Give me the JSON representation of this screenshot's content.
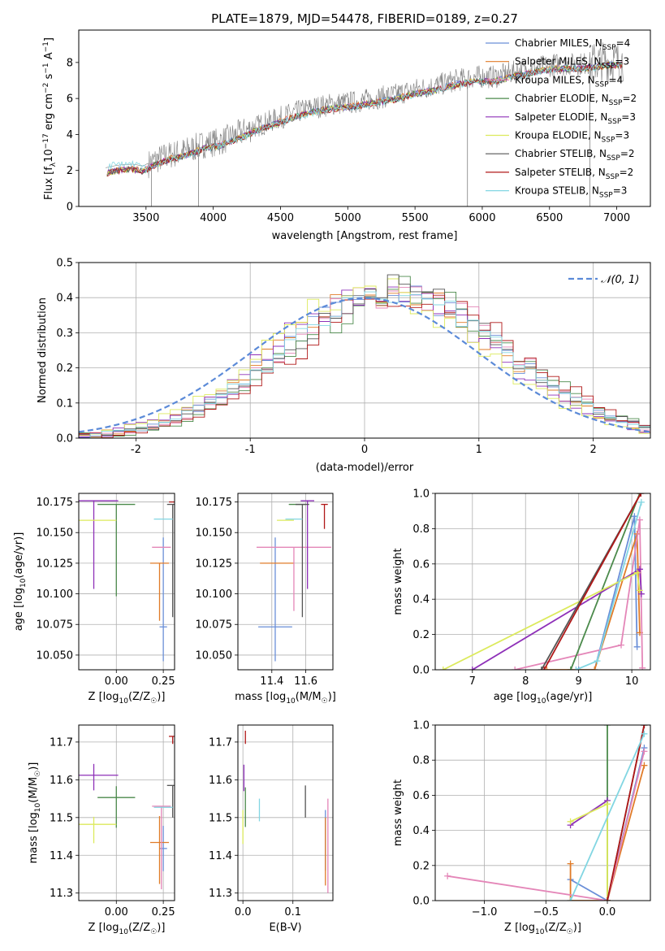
{
  "figure_title": "PLATE=1879, MJD=54478, FIBERID=0189, z=0.27",
  "colors": {
    "Chabrier MILES": "#6a8fd8",
    "Salpeter MILES": "#e07b28",
    "Kroupa MILES": "#e486b8",
    "Chabrier ELODIE": "#4b8a4b",
    "Salpeter ELODIE": "#8e30b8",
    "Kroupa ELODIE": "#dcea5c",
    "Chabrier STELIB": "#555555",
    "Salpeter STELIB": "#b01818",
    "Kroupa STELIB": "#82d6e2",
    "data": "#808080",
    "normal": "#5b8ad8"
  },
  "chart_data": [
    {
      "type": "line",
      "name": "spectrum",
      "xlabel": "wavelength [Angstrom, rest frame]",
      "ylabel": "Flux [f",
      "ylabel_sub": "λ",
      "ylabel_tail": "10",
      "ylabel_sup1": "−17",
      "ylabel_mid": " erg cm",
      "ylabel_sup2": "−2",
      "ylabel_mid2": " s",
      "ylabel_sup3": "−1",
      "ylabel_mid3": " A",
      "ylabel_sup4": "−1",
      "ylabel_end": "]",
      "xlim": [
        3000,
        7250
      ],
      "ylim": [
        0,
        9.8
      ],
      "xticks": [
        3500,
        4000,
        4500,
        5000,
        5500,
        6000,
        6500,
        7000
      ],
      "yticks": [
        0,
        2,
        4,
        6,
        8
      ],
      "continuum_x": [
        3200,
        3260,
        3300,
        3400,
        3480,
        3550,
        3650,
        3800,
        3950,
        4050,
        4150,
        4300,
        4450,
        4600,
        4750,
        4900,
        5050,
        5200,
        5350,
        5500,
        5650,
        5800,
        5950,
        6100,
        6250,
        6400,
        6550,
        6700,
        6850,
        7000,
        7050
      ],
      "continuum_y": [
        1.9,
        2.0,
        2.05,
        2.1,
        2.0,
        2.3,
        2.6,
        2.9,
        3.3,
        3.4,
        3.7,
        4.2,
        4.6,
        5.0,
        5.3,
        5.5,
        5.6,
        5.8,
        6.0,
        6.3,
        6.5,
        6.8,
        7.0,
        7.0,
        7.3,
        7.5,
        7.7,
        7.7,
        7.8,
        7.9,
        7.9
      ],
      "legend": [
        {
          "label": "Chabrier MILES, N",
          "sub": "SSP",
          "tail": "=4"
        },
        {
          "label": "Salpeter MILES, N",
          "sub": "SSP",
          "tail": "=3"
        },
        {
          "label": "Kroupa MILES, N",
          "sub": "SSP",
          "tail": "=4"
        },
        {
          "label": "Chabrier ELODIE, N",
          "sub": "SSP",
          "tail": "=2"
        },
        {
          "label": "Salpeter ELODIE, N",
          "sub": "SSP",
          "tail": "=3"
        },
        {
          "label": "Kroupa ELODIE, N",
          "sub": "SSP",
          "tail": "=3"
        },
        {
          "label": "Chabrier STELIB, N",
          "sub": "SSP",
          "tail": "=2"
        },
        {
          "label": "Salpeter STELIB, N",
          "sub": "SSP",
          "tail": "=2"
        },
        {
          "label": "Kroupa STELIB, N",
          "sub": "SSP",
          "tail": "=3"
        }
      ],
      "legend_position": "top-right"
    },
    {
      "type": "histogram",
      "name": "residuals",
      "xlabel": "(data-model)/error",
      "ylabel": "Normed distribution",
      "xlim": [
        -2.5,
        2.5
      ],
      "ylim": [
        0,
        0.5
      ],
      "xticks": [
        -2,
        -1,
        0,
        1,
        2
      ],
      "yticks": [
        0.0,
        0.1,
        0.2,
        0.3,
        0.4,
        0.5
      ],
      "grid": true,
      "bin_edges_start": -2.5,
      "bin_width": 0.1,
      "series_shifts": [
        0.25,
        0.2,
        0.3,
        0.35,
        0.15,
        0.1,
        0.3,
        0.4,
        0.28
      ],
      "normal_label": "𝒩(0, 1)",
      "legend_position": "top-right"
    },
    {
      "type": "scatter",
      "name": "age-vs-Z",
      "xlabel": "Z [log",
      "xlabel_sub": "10",
      "xlabel_tail": "(Z/Z",
      "xlabel_sub2": "☉",
      "xlabel_end": ")]",
      "ylabel": "age  [log",
      "ylabel_sub": "10",
      "ylabel_tail": "(age/yr)]",
      "xlim": [
        -0.2,
        0.31
      ],
      "ylim": [
        10.038,
        10.182
      ],
      "xticks": [
        "0.00",
        "0.25"
      ],
      "xtick_values": [
        0.0,
        0.25
      ],
      "yticks": [
        "10.050",
        "10.075",
        "10.100",
        "10.125",
        "10.150",
        "10.175"
      ],
      "ytick_values": [
        10.05,
        10.075,
        10.1,
        10.125,
        10.15,
        10.175
      ],
      "points": [
        {
          "series": "Chabrier MILES",
          "x": 0.25,
          "y": 10.073,
          "xerr": 0.02,
          "yerr": [
            0.028,
            0.073
          ]
        },
        {
          "series": "Salpeter MILES",
          "x": 0.23,
          "y": 10.125,
          "xerr": 0.05,
          "yerr": [
            0.047,
            0.0
          ]
        },
        {
          "series": "Kroupa MILES",
          "x": 0.24,
          "y": 10.138,
          "xerr": 0.05,
          "yerr": [
            0.0,
            0.0
          ]
        },
        {
          "series": "Chabrier ELODIE",
          "x": 0.0,
          "y": 10.173,
          "xerr": 0.1,
          "yerr": [
            0.075,
            0.0
          ]
        },
        {
          "series": "Salpeter ELODIE",
          "x": -0.12,
          "y": 10.176,
          "xerr": 0.13,
          "yerr": [
            0.072,
            0.0
          ]
        },
        {
          "series": "Kroupa ELODIE",
          "x": -0.12,
          "y": 10.16,
          "xerr": 0.12,
          "yerr": [
            0.0,
            0.0
          ]
        },
        {
          "series": "Chabrier STELIB",
          "x": 0.3,
          "y": 10.173,
          "xerr": 0.03,
          "yerr": [
            0.092,
            0.0
          ]
        },
        {
          "series": "Salpeter STELIB",
          "x": 0.3,
          "y": 10.175,
          "xerr": 0.02,
          "yerr": [
            0.0,
            0.0
          ]
        },
        {
          "series": "Kroupa STELIB",
          "x": 0.25,
          "y": 10.161,
          "xerr": 0.05,
          "yerr": [
            0.0,
            0.0
          ]
        }
      ]
    },
    {
      "type": "scatter",
      "name": "age-vs-mass",
      "xlabel": "mass [log",
      "xlabel_sub": "10",
      "xlabel_tail": "(M/M",
      "xlabel_sub2": "☉",
      "xlabel_end": ")]",
      "xlim": [
        11.2,
        11.76
      ],
      "ylim": [
        10.038,
        10.182
      ],
      "xticks": [
        "11.4",
        "11.6"
      ],
      "xtick_values": [
        11.4,
        11.6
      ],
      "yticks": [
        "10.050",
        "10.075",
        "10.100",
        "10.125",
        "10.150",
        "10.175"
      ],
      "ytick_values": [
        10.05,
        10.075,
        10.1,
        10.125,
        10.15,
        10.175
      ],
      "points": [
        {
          "series": "Chabrier MILES",
          "x": 11.42,
          "y": 10.073,
          "xerr": 0.1,
          "yerr": [
            0.028,
            0.073
          ]
        },
        {
          "series": "Salpeter MILES",
          "x": 11.43,
          "y": 10.125,
          "xerr": 0.1,
          "yerr": [
            0.0,
            0.0
          ]
        },
        {
          "series": "Kroupa MILES",
          "x": 11.53,
          "y": 10.138,
          "xerr": 0.22,
          "yerr": [
            0.052,
            0.0
          ]
        },
        {
          "series": "Chabrier ELODIE",
          "x": 11.55,
          "y": 10.173,
          "xerr": 0.05,
          "yerr": [
            0.0,
            0.0
          ]
        },
        {
          "series": "Salpeter ELODIE",
          "x": 11.61,
          "y": 10.176,
          "xerr": 0.04,
          "yerr": [
            0.072,
            0.0
          ]
        },
        {
          "series": "Kroupa ELODIE",
          "x": 11.48,
          "y": 10.16,
          "xerr": 0.05,
          "yerr": [
            0.0,
            0.0
          ]
        },
        {
          "series": "Chabrier STELIB",
          "x": 11.58,
          "y": 10.173,
          "xerr": 0.04,
          "yerr": [
            0.092,
            0.0
          ]
        },
        {
          "series": "Salpeter STELIB",
          "x": 11.71,
          "y": 10.173,
          "xerr": 0.02,
          "yerr": [
            0.02,
            0.0
          ]
        },
        {
          "series": "Kroupa STELIB",
          "x": 11.53,
          "y": 10.161,
          "xerr": 0.05,
          "yerr": [
            0.0,
            0.0
          ]
        }
      ]
    },
    {
      "type": "line",
      "name": "mass-weight-vs-age",
      "xlabel": "age  [log",
      "xlabel_sub": "10",
      "xlabel_tail": "(age/yr)]",
      "ylabel": "mass weight",
      "xlim": [
        6.3,
        10.35
      ],
      "ylim": [
        0,
        1.0
      ],
      "xticks": [
        7,
        8,
        9,
        10
      ],
      "yticks": [
        "0.0",
        "0.2",
        "0.4",
        "0.6",
        "0.8",
        "1.0"
      ],
      "ytick_values": [
        0.0,
        0.2,
        0.4,
        0.6,
        0.8,
        1.0
      ],
      "grid": true,
      "series": [
        {
          "name": "Chabrier MILES",
          "x": [
            9.0,
            9.3,
            10.05,
            10.1
          ],
          "y": [
            0.0,
            0.0,
            0.87,
            0.13
          ]
        },
        {
          "name": "Salpeter MILES",
          "x": [
            8.4,
            9.3,
            10.1,
            10.15
          ],
          "y": [
            0.0,
            0.0,
            0.77,
            0.21
          ]
        },
        {
          "name": "Kroupa MILES",
          "x": [
            7.8,
            9.8,
            10.15,
            10.2
          ],
          "y": [
            0.0,
            0.14,
            0.85,
            0.01
          ]
        },
        {
          "name": "Chabrier ELODIE",
          "x": [
            8.85,
            10.15
          ],
          "y": [
            0.0,
            1.0
          ]
        },
        {
          "name": "Salpeter ELODIE",
          "x": [
            7.0,
            10.15,
            10.18
          ],
          "y": [
            0.0,
            0.57,
            0.43
          ]
        },
        {
          "name": "Kroupa ELODIE",
          "x": [
            6.45,
            10.1,
            10.15
          ],
          "y": [
            0.0,
            0.55,
            0.45
          ]
        },
        {
          "name": "Chabrier STELIB",
          "x": [
            8.3,
            10.17
          ],
          "y": [
            0.0,
            1.0
          ]
        },
        {
          "name": "Salpeter STELIB",
          "x": [
            8.35,
            10.17
          ],
          "y": [
            0.0,
            1.0
          ]
        },
        {
          "name": "Kroupa STELIB",
          "x": [
            8.95,
            9.35,
            10.18
          ],
          "y": [
            0.0,
            0.05,
            0.95
          ]
        }
      ]
    },
    {
      "type": "scatter",
      "name": "mass-vs-Z",
      "xlabel": "Z [log",
      "xlabel_sub": "10",
      "xlabel_tail": "(Z/Z",
      "xlabel_sub2": "☉",
      "xlabel_end": ")]",
      "ylabel": "mass [log",
      "ylabel_sub": "10",
      "ylabel_tail": "(M/M",
      "ylabel_sub2": "☉",
      "ylabel_end": ")]",
      "xlim": [
        -0.2,
        0.31
      ],
      "ylim": [
        11.28,
        11.745
      ],
      "xticks": [
        "0.00",
        "0.25"
      ],
      "xtick_values": [
        0.0,
        0.25
      ],
      "yticks": [
        "11.3",
        "11.4",
        "11.5",
        "11.6",
        "11.7"
      ],
      "ytick_values": [
        11.3,
        11.4,
        11.5,
        11.6,
        11.7
      ],
      "points": [
        {
          "series": "Chabrier MILES",
          "x": 0.25,
          "y": 11.418,
          "xerr": 0.02,
          "yerr": [
            0.06,
            0.06
          ]
        },
        {
          "series": "Salpeter MILES",
          "x": 0.23,
          "y": 11.434,
          "xerr": 0.05,
          "yerr": [
            0.11,
            0.07
          ]
        },
        {
          "series": "Kroupa MILES",
          "x": 0.24,
          "y": 11.53,
          "xerr": 0.05,
          "yerr": [
            0.22,
            0.0
          ]
        },
        {
          "series": "Chabrier ELODIE",
          "x": 0.0,
          "y": 11.553,
          "xerr": 0.1,
          "yerr": [
            0.08,
            0.03
          ]
        },
        {
          "series": "Salpeter ELODIE",
          "x": -0.12,
          "y": 11.612,
          "xerr": 0.13,
          "yerr": [
            0.04,
            0.03
          ]
        },
        {
          "series": "Kroupa ELODIE",
          "x": -0.12,
          "y": 11.482,
          "xerr": 0.12,
          "yerr": [
            0.05,
            0.02
          ]
        },
        {
          "series": "Chabrier STELIB",
          "x": 0.3,
          "y": 11.585,
          "xerr": 0.03,
          "yerr": [
            0.085,
            0.0
          ]
        },
        {
          "series": "Salpeter STELIB",
          "x": 0.3,
          "y": 11.715,
          "xerr": 0.02,
          "yerr": [
            0.02,
            0.0
          ]
        },
        {
          "series": "Kroupa STELIB",
          "x": 0.25,
          "y": 11.527,
          "xerr": 0.05,
          "yerr": [
            0.0,
            0.0
          ]
        }
      ]
    },
    {
      "type": "scatter",
      "name": "mass-vs-ebv",
      "xlabel": "E(B-V)",
      "xlim": [
        -0.01,
        0.18
      ],
      "ylim": [
        11.28,
        11.745
      ],
      "xticks": [
        "0.0",
        "0.1"
      ],
      "xtick_values": [
        0.0,
        0.1
      ],
      "yticks": [
        "11.3",
        "11.4",
        "11.5",
        "11.6",
        "11.7"
      ],
      "ytick_values": [
        11.3,
        11.4,
        11.5,
        11.6,
        11.7
      ],
      "points": [
        {
          "series": "Chabrier MILES",
          "x": 0.165,
          "y": 11.42,
          "xerr": 0.0,
          "yerr": [
            0.06,
            0.1
          ]
        },
        {
          "series": "Salpeter MILES",
          "x": 0.165,
          "y": 11.5,
          "xerr": 0.0,
          "yerr": [
            0.18,
            0.0
          ]
        },
        {
          "series": "Kroupa MILES",
          "x": 0.17,
          "y": 11.45,
          "xerr": 0.0,
          "yerr": [
            0.15,
            0.1
          ]
        },
        {
          "series": "Chabrier ELODIE",
          "x": 0.005,
          "y": 11.55,
          "xerr": 0.0,
          "yerr": [
            0.075,
            0.03
          ]
        },
        {
          "series": "Salpeter ELODIE",
          "x": 0.002,
          "y": 11.61,
          "xerr": 0.0,
          "yerr": [
            0.04,
            0.03
          ]
        },
        {
          "series": "Kroupa ELODIE",
          "x": 0.0,
          "y": 11.48,
          "xerr": 0.0,
          "yerr": [
            0.05,
            0.04
          ]
        },
        {
          "series": "Chabrier STELIB",
          "x": 0.125,
          "y": 11.545,
          "xerr": 0.0,
          "yerr": [
            0.045,
            0.04
          ]
        },
        {
          "series": "Salpeter STELIB",
          "x": 0.005,
          "y": 11.715,
          "xerr": 0.0,
          "yerr": [
            0.02,
            0.015
          ]
        },
        {
          "series": "Kroupa STELIB",
          "x": 0.033,
          "y": 11.52,
          "xerr": 0.0,
          "yerr": [
            0.03,
            0.03
          ]
        }
      ]
    },
    {
      "type": "line",
      "name": "mass-weight-vs-Z",
      "xlabel": "Z [log",
      "xlabel_sub": "10",
      "xlabel_tail": "(Z/Z",
      "xlabel_sub2": "☉",
      "xlabel_end": ")]",
      "ylabel": "mass weight",
      "xlim": [
        -1.4,
        0.35
      ],
      "ylim": [
        0,
        1.0
      ],
      "xticks": [
        "−1.0",
        "−0.5",
        "0.0"
      ],
      "xtick_values": [
        -1.0,
        -0.5,
        0.0
      ],
      "yticks": [
        "0.0",
        "0.2",
        "0.4",
        "0.6",
        "0.8",
        "1.0"
      ],
      "ytick_values": [
        0.0,
        0.2,
        0.4,
        0.6,
        0.8,
        1.0
      ],
      "grid": true,
      "series": [
        {
          "name": "Chabrier MILES",
          "x": [
            -0.3,
            0.0,
            0.3
          ],
          "y": [
            0.12,
            0.0,
            0.87
          ]
        },
        {
          "name": "Salpeter MILES",
          "x": [
            -0.3,
            -0.3,
            0.0,
            0.3
          ],
          "y": [
            0.21,
            0.0,
            0.0,
            0.77
          ]
        },
        {
          "name": "Kroupa MILES",
          "x": [
            -1.3,
            0.0,
            0.3
          ],
          "y": [
            0.14,
            0.0,
            0.85
          ]
        },
        {
          "name": "Chabrier ELODIE",
          "x": [
            0.0,
            0.0
          ],
          "y": [
            0.0,
            1.0
          ]
        },
        {
          "name": "Salpeter ELODIE",
          "x": [
            -0.3,
            0.0
          ],
          "y": [
            0.43,
            0.57
          ]
        },
        {
          "name": "Kroupa ELODIE",
          "x": [
            -0.3,
            0.0,
            0.0
          ],
          "y": [
            0.45,
            0.55,
            0.0
          ]
        },
        {
          "name": "Chabrier STELIB",
          "x": [
            0.0,
            0.3
          ],
          "y": [
            0.0,
            1.0
          ]
        },
        {
          "name": "Salpeter STELIB",
          "x": [
            0.0,
            0.3
          ],
          "y": [
            0.0,
            1.0
          ]
        },
        {
          "name": "Kroupa STELIB",
          "x": [
            -0.3,
            0.3
          ],
          "y": [
            0.0,
            0.95
          ]
        }
      ]
    }
  ]
}
